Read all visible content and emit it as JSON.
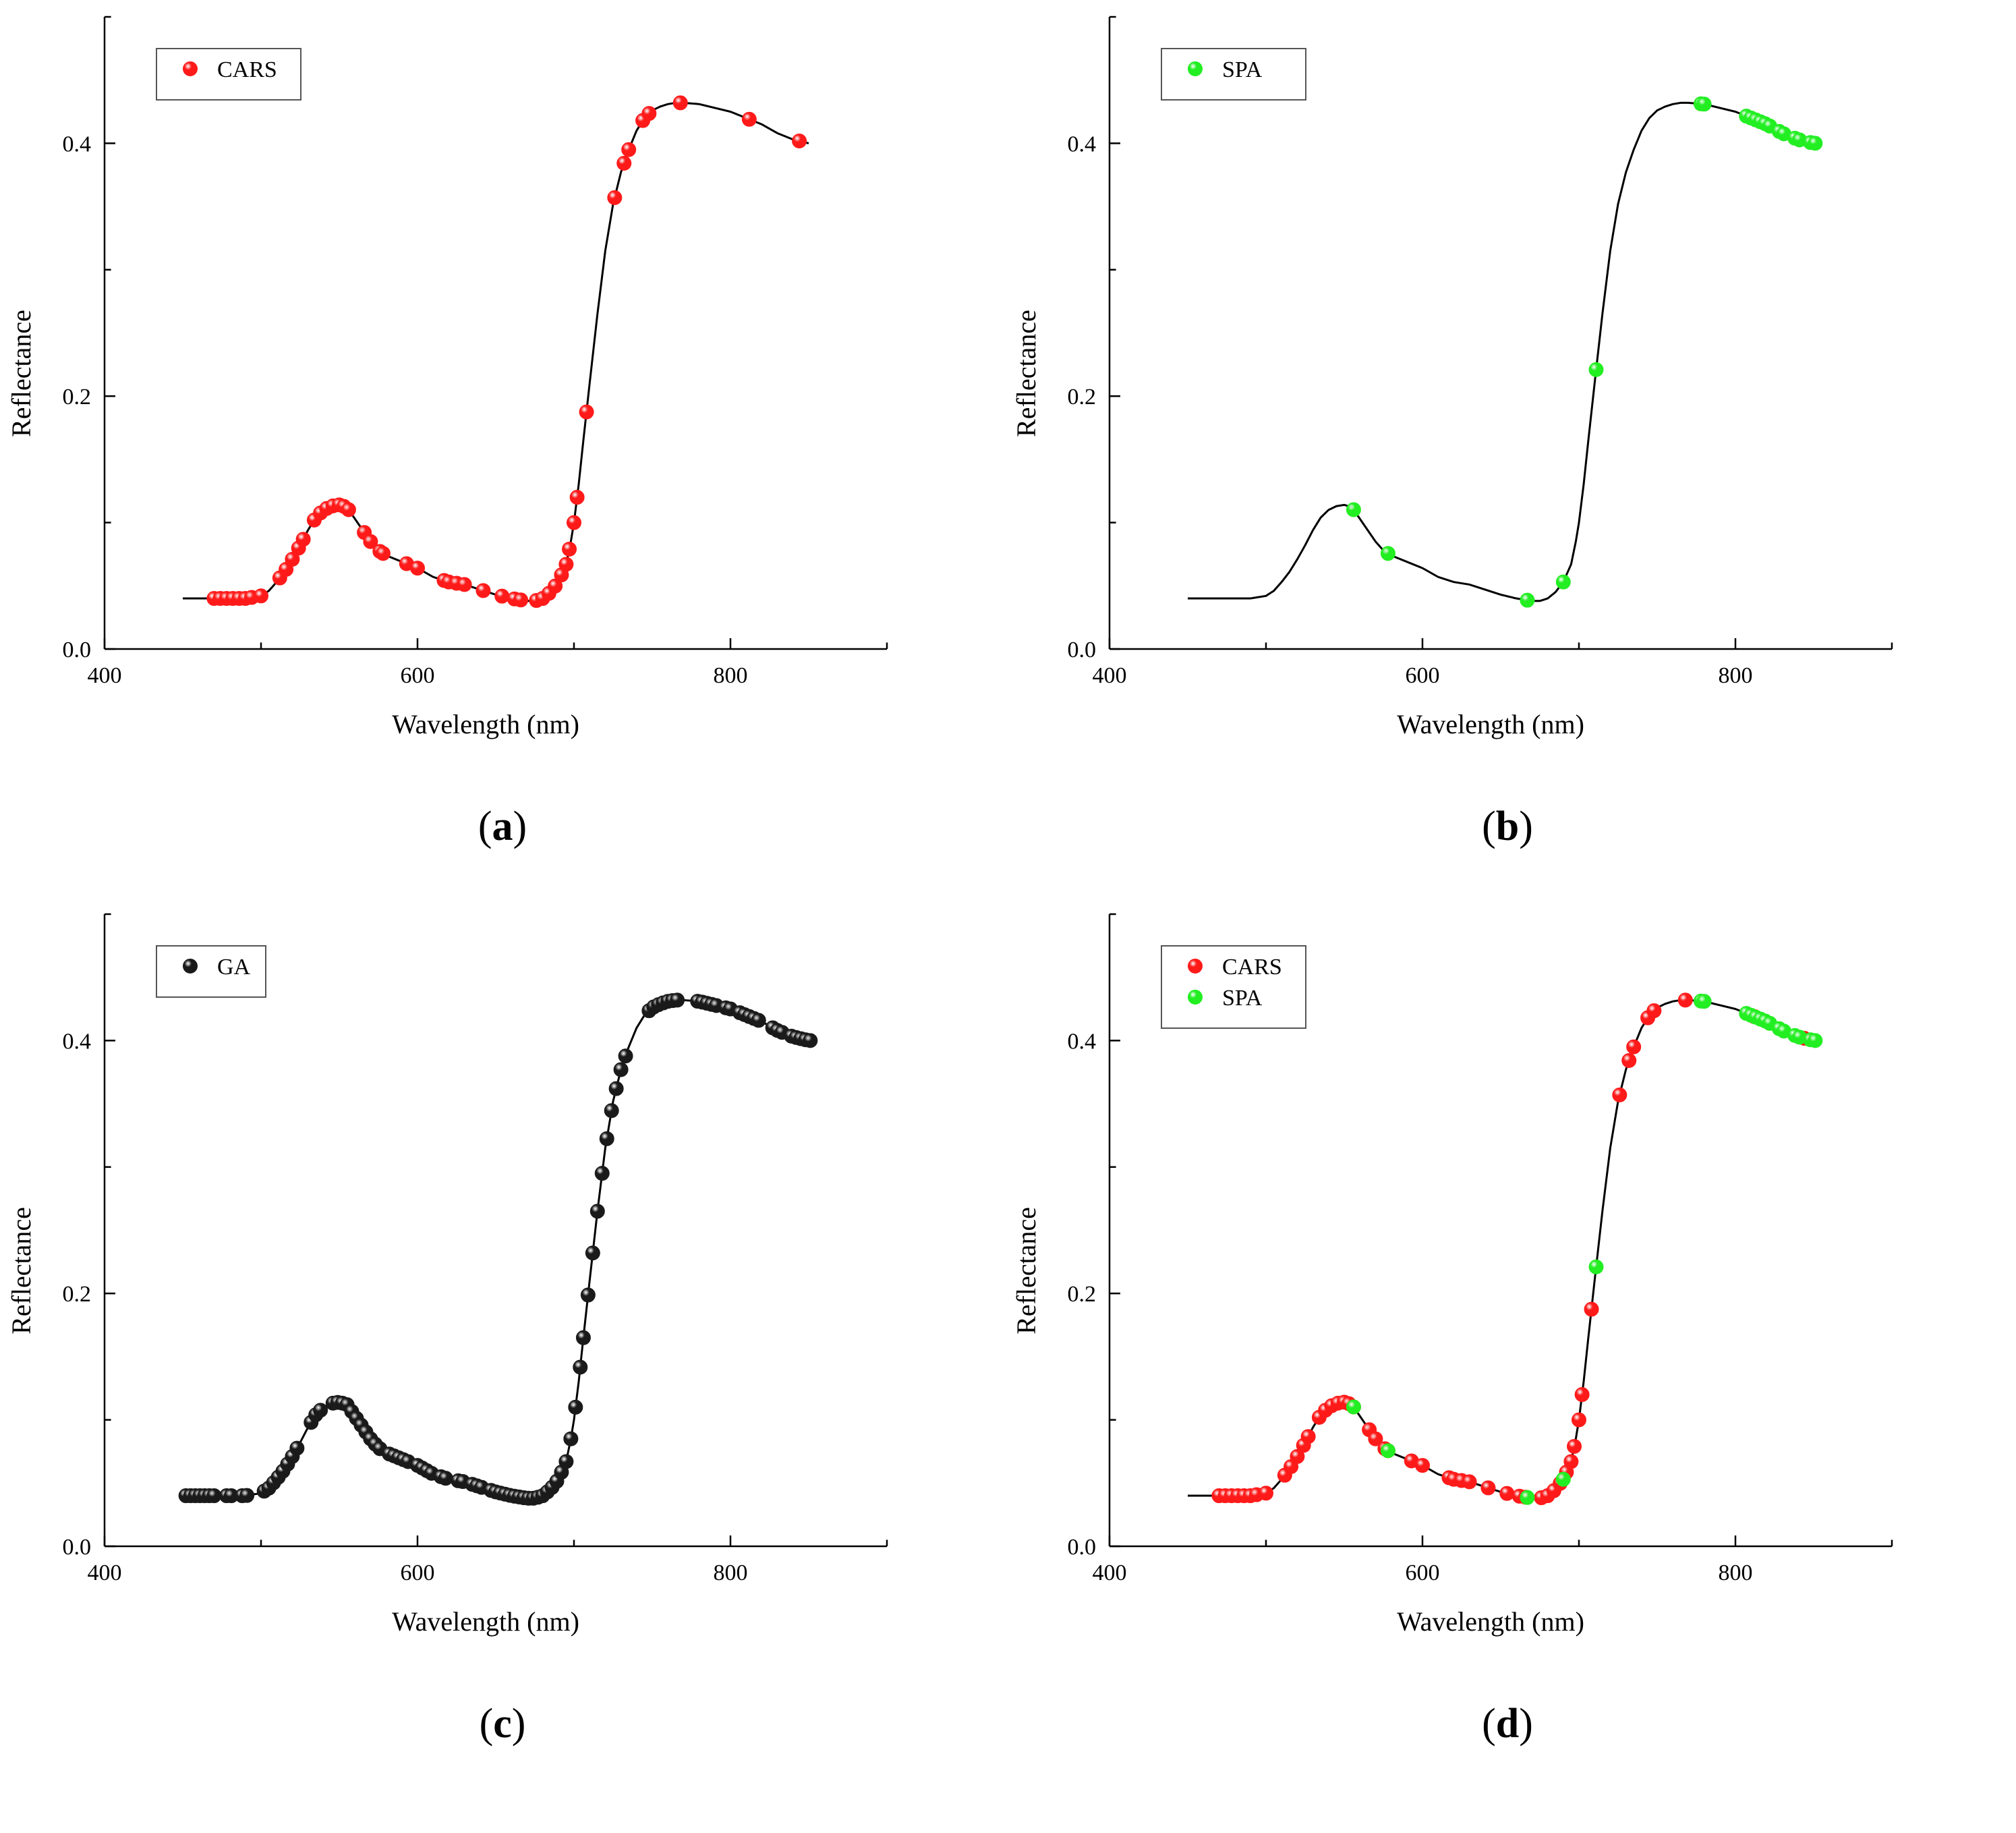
{
  "figure": {
    "panels": [
      {
        "id": "a",
        "caption_open": "(",
        "caption_letter": "a",
        "caption_close": ")"
      },
      {
        "id": "b",
        "caption_open": "(",
        "caption_letter": "b",
        "caption_close": ")"
      },
      {
        "id": "c",
        "caption_open": "(",
        "caption_letter": "c",
        "caption_close": ")"
      },
      {
        "id": "d",
        "caption_open": "(",
        "caption_letter": "d",
        "caption_close": ")"
      }
    ]
  },
  "colors": {
    "curve": "#000000",
    "CARS": "#ff1a1a",
    "SPA": "#22ee22",
    "GA": "#1a1a1a"
  },
  "chart_data": [
    {
      "panel": "a",
      "type": "line",
      "title": "",
      "xlabel": "Wavelength (nm)",
      "ylabel": "Reflectance",
      "xlim": [
        400,
        900
      ],
      "ylim": [
        0.0,
        0.5
      ],
      "xticks": [
        400,
        600,
        800
      ],
      "yticks": [
        0.0,
        0.2,
        0.4
      ],
      "xtick_labels": [
        "400",
        "600",
        "800"
      ],
      "ytick_labels": [
        "0.0",
        "0.2",
        "0.4"
      ],
      "legend": {
        "position": "top-left",
        "entries": [
          {
            "name": "CARS",
            "color_key": "CARS"
          }
        ]
      },
      "series": [
        {
          "name": "CARS",
          "color_key": "CARS",
          "x": [
            470,
            474,
            478,
            482,
            486,
            490,
            494,
            500,
            512,
            516,
            520,
            524,
            527,
            534,
            538,
            542,
            546,
            550,
            553,
            556,
            566,
            570,
            576,
            578,
            593,
            600,
            617,
            620,
            625,
            630,
            642,
            654,
            662,
            666,
            676,
            680,
            684,
            688,
            692,
            695,
            697,
            700,
            702,
            708,
            726,
            732,
            735,
            744,
            748,
            768,
            812,
            844
          ]
        }
      ]
    },
    {
      "panel": "b",
      "type": "line",
      "title": "",
      "xlabel": "Wavelength (nm)",
      "ylabel": "Reflectance",
      "xlim": [
        400,
        900
      ],
      "ylim": [
        0.0,
        0.5
      ],
      "xticks": [
        400,
        600,
        800
      ],
      "yticks": [
        0.0,
        0.2,
        0.4
      ],
      "xtick_labels": [
        "400",
        "600",
        "800"
      ],
      "ytick_labels": [
        "0.0",
        "0.2",
        "0.4"
      ],
      "legend": {
        "position": "top-left",
        "entries": [
          {
            "name": "SPA",
            "color_key": "SPA"
          }
        ]
      },
      "series": [
        {
          "name": "SPA",
          "color_key": "SPA",
          "x": [
            556,
            578,
            667,
            690,
            711,
            778,
            780,
            807,
            810,
            813,
            816,
            819,
            822,
            828,
            831,
            838,
            841,
            848,
            851
          ]
        }
      ]
    },
    {
      "panel": "c",
      "type": "line",
      "title": "",
      "xlabel": "Wavelength (nm)",
      "ylabel": "Reflectance",
      "xlim": [
        400,
        900
      ],
      "ylim": [
        0.0,
        0.5
      ],
      "xticks": [
        400,
        600,
        800
      ],
      "yticks": [
        0.0,
        0.2,
        0.4
      ],
      "xtick_labels": [
        "400",
        "600",
        "800"
      ],
      "ytick_labels": [
        "0.0",
        "0.2",
        "0.4"
      ],
      "legend": {
        "position": "top-left",
        "entries": [
          {
            "name": "GA",
            "color_key": "GA"
          }
        ]
      },
      "series": [
        {
          "name": "GA",
          "color_key": "GA",
          "x": [
            452,
            455,
            458,
            461,
            464,
            467,
            470,
            478,
            481,
            488,
            491,
            502,
            505,
            508,
            511,
            514,
            517,
            520,
            523,
            532,
            535,
            538,
            546,
            549,
            552,
            555,
            558,
            561,
            564,
            567,
            570,
            573,
            576,
            582,
            585,
            588,
            591,
            594,
            600,
            603,
            606,
            609,
            615,
            618,
            626,
            629,
            635,
            638,
            641,
            647,
            650,
            653,
            656,
            659,
            662,
            665,
            668,
            671,
            674,
            677,
            680,
            683,
            686,
            689,
            692,
            695,
            698,
            701,
            704,
            706,
            709,
            712,
            715,
            718,
            721,
            724,
            727,
            730,
            733,
            748,
            751,
            754,
            757,
            760,
            763,
            766,
            779,
            782,
            785,
            788,
            791,
            797,
            800,
            806,
            809,
            812,
            815,
            818,
            827,
            830,
            833,
            839,
            842,
            845,
            848,
            851
          ]
        }
      ]
    },
    {
      "panel": "d",
      "type": "line",
      "title": "",
      "xlabel": "Wavelength (nm)",
      "ylabel": "Reflectance",
      "xlim": [
        400,
        900
      ],
      "ylim": [
        0.0,
        0.5
      ],
      "xticks": [
        400,
        600,
        800
      ],
      "yticks": [
        0.0,
        0.2,
        0.4
      ],
      "xtick_labels": [
        "400",
        "600",
        "800"
      ],
      "ytick_labels": [
        "0.0",
        "0.2",
        "0.4"
      ],
      "legend": {
        "position": "top-left",
        "entries": [
          {
            "name": "CARS",
            "color_key": "CARS"
          },
          {
            "name": "SPA",
            "color_key": "SPA"
          }
        ]
      },
      "series": [
        {
          "name": "CARS",
          "color_key": "CARS",
          "x": [
            470,
            474,
            478,
            482,
            486,
            490,
            494,
            500,
            512,
            516,
            520,
            524,
            527,
            534,
            538,
            542,
            546,
            550,
            553,
            556,
            566,
            570,
            576,
            578,
            593,
            600,
            617,
            620,
            625,
            630,
            642,
            654,
            662,
            666,
            676,
            680,
            684,
            688,
            692,
            695,
            697,
            700,
            702,
            708,
            726,
            732,
            735,
            744,
            748,
            768,
            812,
            844
          ]
        },
        {
          "name": "SPA",
          "color_key": "SPA",
          "x": [
            556,
            578,
            667,
            690,
            711,
            778,
            780,
            807,
            810,
            813,
            816,
            819,
            822,
            828,
            831,
            838,
            841,
            848,
            851
          ]
        }
      ]
    }
  ],
  "spectrum": {
    "name": "mean reflectance",
    "wavelength": [
      450,
      470,
      490,
      500,
      505,
      510,
      515,
      520,
      525,
      530,
      535,
      540,
      545,
      550,
      555,
      560,
      565,
      570,
      575,
      580,
      590,
      600,
      610,
      620,
      630,
      640,
      650,
      660,
      670,
      675,
      680,
      685,
      690,
      695,
      698,
      700,
      703,
      706,
      710,
      715,
      720,
      725,
      730,
      735,
      740,
      745,
      750,
      755,
      760,
      765,
      770,
      780,
      790,
      800,
      810,
      820,
      830,
      840,
      850
    ],
    "reflectance": [
      0.04,
      0.04,
      0.04,
      0.042,
      0.046,
      0.053,
      0.061,
      0.071,
      0.082,
      0.094,
      0.104,
      0.11,
      0.113,
      0.114,
      0.112,
      0.103,
      0.094,
      0.085,
      0.078,
      0.074,
      0.069,
      0.064,
      0.057,
      0.053,
      0.051,
      0.047,
      0.043,
      0.04,
      0.038,
      0.038,
      0.04,
      0.045,
      0.053,
      0.067,
      0.085,
      0.1,
      0.13,
      0.165,
      0.21,
      0.265,
      0.315,
      0.352,
      0.377,
      0.395,
      0.41,
      0.42,
      0.426,
      0.429,
      0.431,
      0.432,
      0.432,
      0.431,
      0.428,
      0.425,
      0.42,
      0.415,
      0.408,
      0.403,
      0.4
    ]
  }
}
